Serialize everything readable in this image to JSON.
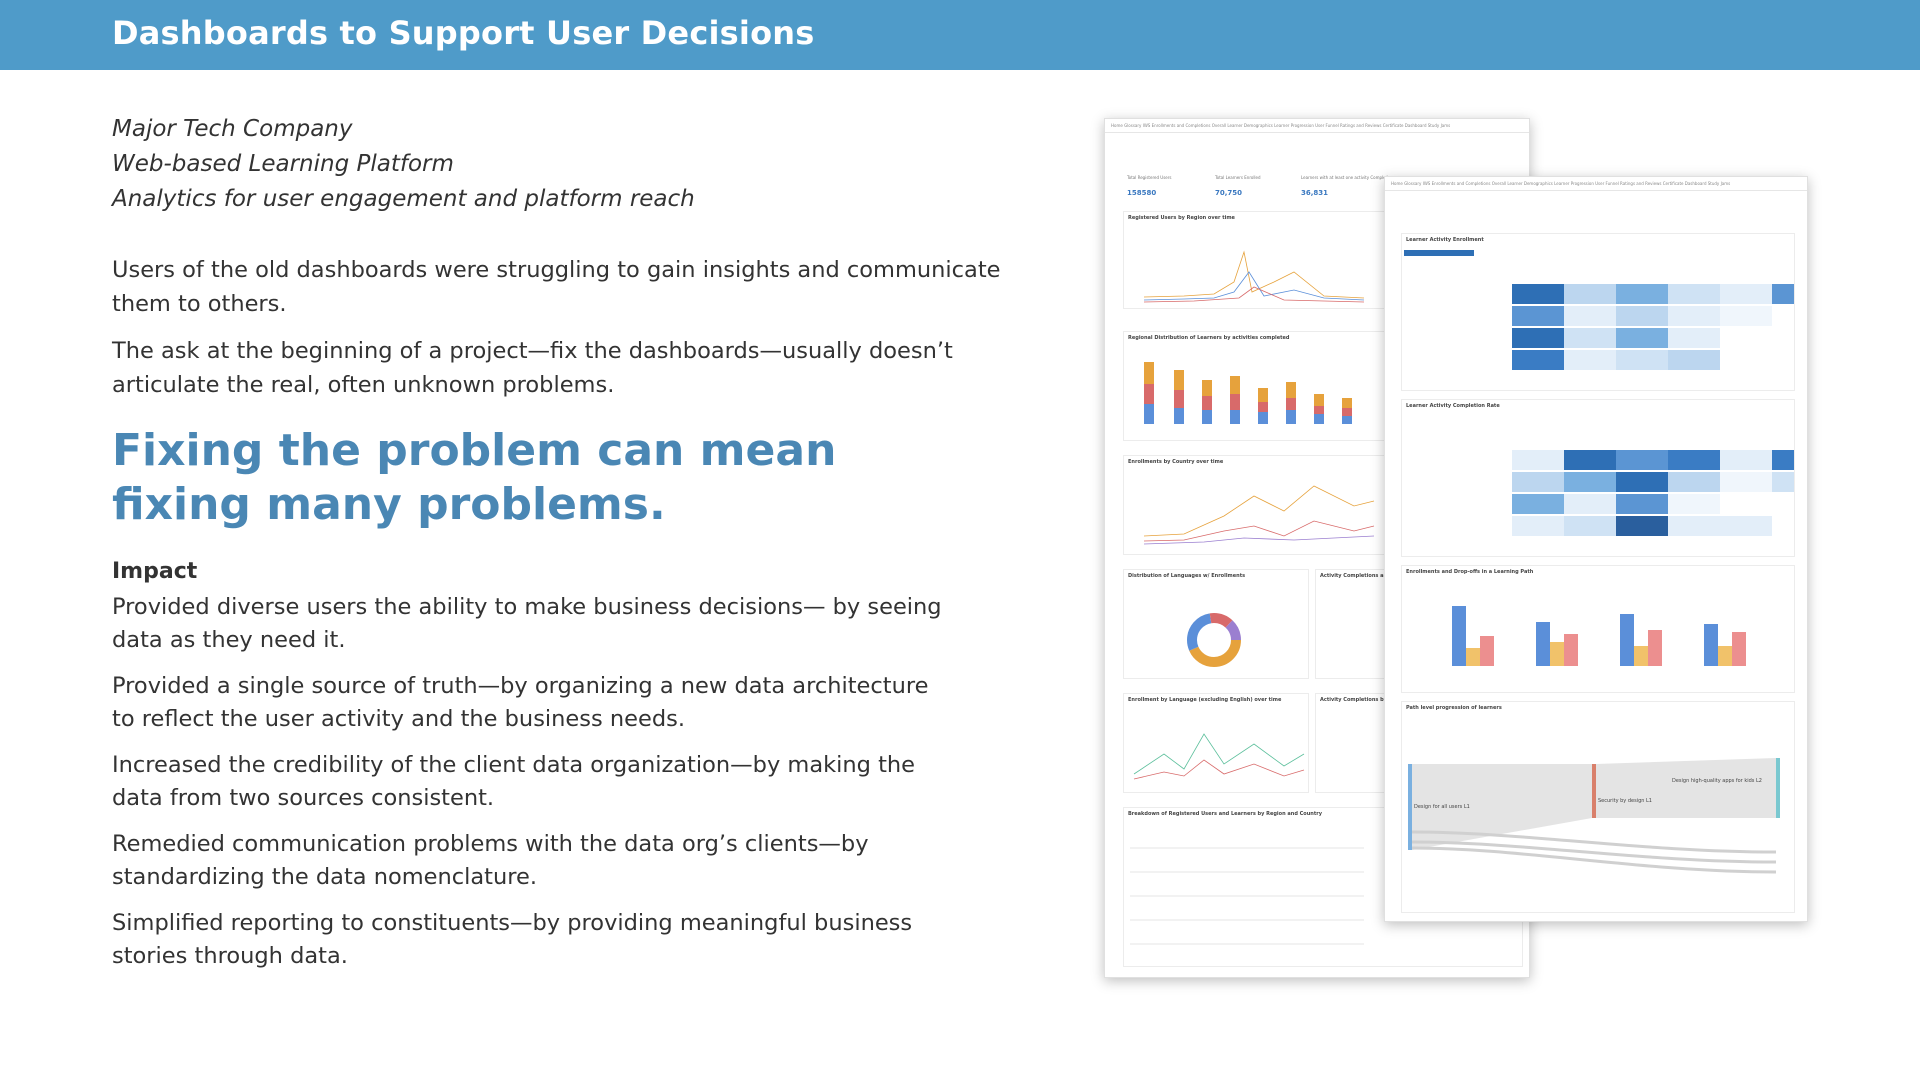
{
  "header": {
    "title": "Dashboards to Support User Decisions"
  },
  "intro": {
    "company": "Major Tech Company",
    "platform": "Web-based Learning Platform",
    "scope": "Analytics for user engagement and platform reach"
  },
  "body": {
    "para1": "Users of the old dashboards were struggling to gain insights and communicate them to others.",
    "para2": "The ask at the beginning of a project—fix the dashboards—usually doesn’t articulate the real, often unknown problems."
  },
  "headline": "Fixing the problem can mean fixing many problems.",
  "impact": {
    "heading": "Impact",
    "items": [
      "Provided diverse users the ability to make business decisions— by seeing data as they need it.",
      "Provided a single source of truth—by organizing a new data architecture to reflect the user activity and the business needs.",
      "Increased the credibility of the client data organization—by making the data from two sources consistent.",
      "Remedied communication problems with the data org’s clients—by standardizing the data nomenclature.",
      "Simplified reporting to constituents—by providing meaningful business stories through data."
    ]
  },
  "dashboard_back": {
    "tabs": "Home   Glossary   IWS   Enrollments and Completions Overall   Learner Demographics   Learner Progression   User Funnel   Ratings and Reviews   Certificate Dashboard   Study Jams",
    "stats": [
      {
        "label": "Total Registered Users",
        "value": "158580"
      },
      {
        "label": "Total Learners Enrolled",
        "value": "70,750"
      },
      {
        "label": "Learners with at least one activity Completion",
        "value": "36,831"
      }
    ],
    "panels": [
      "Registered Users by Region over time",
      "Regional Distribution of Learners by activities completed",
      "Enrollments by Country over time",
      "Distribution of Languages w/ Enrollments",
      "Activity Completions an",
      "Enrollment by Language (excluding English) over time",
      "Activity Completions by",
      "Breakdown of Registered Users and Learners by Region and Country"
    ]
  },
  "dashboard_front": {
    "tabs": "Home   Glossary   IWS   Enrollments and Completions Overall   Learner Demographics   Learner Progression   User Funnel   Ratings and Reviews   Certificate Dashboard   Study Jams",
    "panels": [
      "Learner Activity Enrollment",
      "Learner Activity Completion Rate",
      "Enrollments and Drop-offs in a Learning Path",
      "Path level progression of learners"
    ],
    "sankey_labels": {
      "left": "Design for all users L1",
      "middle": "Security by design L1",
      "right": "Design high-quality apps for kids L2"
    }
  }
}
